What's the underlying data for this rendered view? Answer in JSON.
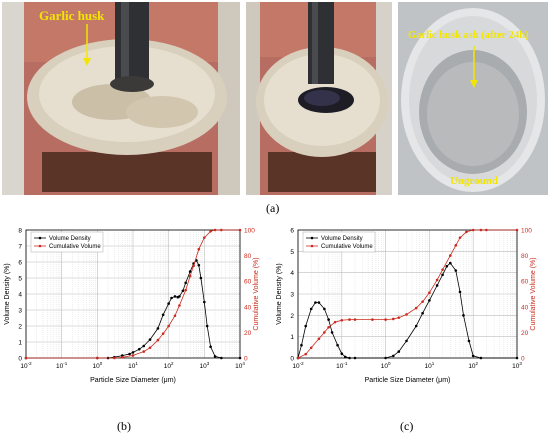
{
  "photos": {
    "a1": {
      "label": "Garlic husk"
    },
    "a2": {},
    "a3": {
      "label": "Garlic husk ash (after 24h)",
      "sublabel": "Unground"
    }
  },
  "panel_labels": {
    "a": "(a)",
    "b": "(b)",
    "c": "(c)"
  },
  "colors": {
    "volume_density": "#000000",
    "cumulative_volume": "#cc2a1e",
    "annotation": "#f2e600"
  },
  "chart_data": [
    {
      "type": "line",
      "title": "",
      "xlabel": "Particle Size Diameter (μm)",
      "ylabel": "Volume Density (%)",
      "y2label": "Cumulative Volume (%)",
      "xscale": "log",
      "xlim": [
        0.01,
        10000
      ],
      "x_tick_labels": [
        "10^-2",
        "10^-1",
        "10^0",
        "10^1",
        "10^2",
        "10^3",
        "10^4"
      ],
      "ylim": [
        0,
        8
      ],
      "y_ticks": [
        0,
        1,
        2,
        3,
        4,
        5,
        6,
        7,
        8
      ],
      "y2lim": [
        0,
        100
      ],
      "y2_ticks": [
        0,
        20,
        40,
        60,
        80,
        100
      ],
      "grid": true,
      "legend": "top-left",
      "series": [
        {
          "name": "Volume Density",
          "axis": "left",
          "marker": "circle",
          "x": [
            0.01,
            1,
            2,
            3,
            5,
            8,
            10,
            15,
            20,
            30,
            50,
            70,
            100,
            120,
            150,
            180,
            200,
            250,
            300,
            400,
            500,
            600,
            700,
            800,
            1000,
            1200,
            1500,
            2000,
            3000,
            10000
          ],
          "y": [
            0,
            0,
            0,
            0.05,
            0.15,
            0.25,
            0.35,
            0.55,
            0.75,
            1.15,
            1.85,
            2.7,
            3.4,
            3.75,
            3.85,
            3.8,
            3.85,
            4.2,
            4.7,
            5.4,
            5.9,
            6.1,
            5.8,
            5.0,
            3.5,
            2.0,
            0.7,
            0.1,
            0,
            0
          ]
        },
        {
          "name": "Cumulative Volume",
          "axis": "right",
          "marker": "circle",
          "x": [
            0.01,
            1,
            3,
            5,
            10,
            20,
            30,
            50,
            70,
            100,
            150,
            200,
            300,
            400,
            500,
            700,
            1000,
            1500,
            2000,
            3000,
            10000
          ],
          "y": [
            0,
            0,
            0,
            0.5,
            2,
            5,
            8,
            14,
            19,
            25,
            33,
            41,
            53,
            64,
            72,
            85,
            94,
            99,
            100,
            100,
            100
          ]
        }
      ]
    },
    {
      "type": "line",
      "title": "",
      "xlabel": "Particle Size Diameter (μm)",
      "ylabel": "Volume Density (%)",
      "y2label": "Cumulative Volume (%)",
      "xscale": "log",
      "xlim": [
        0.01,
        1000
      ],
      "x_tick_labels": [
        "10^-2",
        "10^-1",
        "10^0",
        "10^1",
        "10^2",
        "10^3"
      ],
      "ylim": [
        0,
        6
      ],
      "y_ticks": [
        0,
        1,
        2,
        3,
        4,
        5,
        6
      ],
      "y2lim": [
        0,
        100
      ],
      "y2_ticks": [
        0,
        20,
        40,
        60,
        80,
        100
      ],
      "grid": true,
      "legend": "top-left",
      "series": [
        {
          "name": "Volume Density",
          "axis": "left",
          "marker": "circle",
          "x": [
            0.01,
            0.012,
            0.015,
            0.02,
            0.025,
            0.03,
            0.04,
            0.05,
            0.06,
            0.08,
            0.1,
            0.12,
            0.15,
            0.2,
            1,
            1.5,
            2,
            3,
            5,
            7,
            10,
            15,
            20,
            25,
            30,
            40,
            50,
            60,
            80,
            100,
            150,
            1000
          ],
          "y": [
            0,
            0.6,
            1.5,
            2.3,
            2.6,
            2.6,
            2.3,
            1.8,
            1.2,
            0.6,
            0.2,
            0.05,
            0,
            0,
            0,
            0.1,
            0.3,
            0.8,
            1.5,
            2.1,
            2.7,
            3.4,
            3.9,
            4.3,
            4.45,
            4.1,
            3.1,
            2.0,
            0.8,
            0.1,
            0,
            0
          ]
        },
        {
          "name": "Cumulative Volume",
          "axis": "right",
          "marker": "circle",
          "x": [
            0.01,
            0.015,
            0.02,
            0.03,
            0.04,
            0.05,
            0.07,
            0.1,
            0.15,
            0.2,
            0.5,
            1,
            1.5,
            2,
            3,
            5,
            7,
            10,
            15,
            20,
            30,
            40,
            50,
            70,
            100,
            150,
            200,
            1000
          ],
          "y": [
            0,
            3,
            8,
            15,
            20,
            24,
            28,
            29.5,
            30,
            30,
            30,
            30,
            30.5,
            31.5,
            34,
            39,
            44,
            51,
            61,
            69,
            80,
            88,
            94,
            98.5,
            100,
            100,
            100,
            100
          ]
        }
      ]
    }
  ]
}
